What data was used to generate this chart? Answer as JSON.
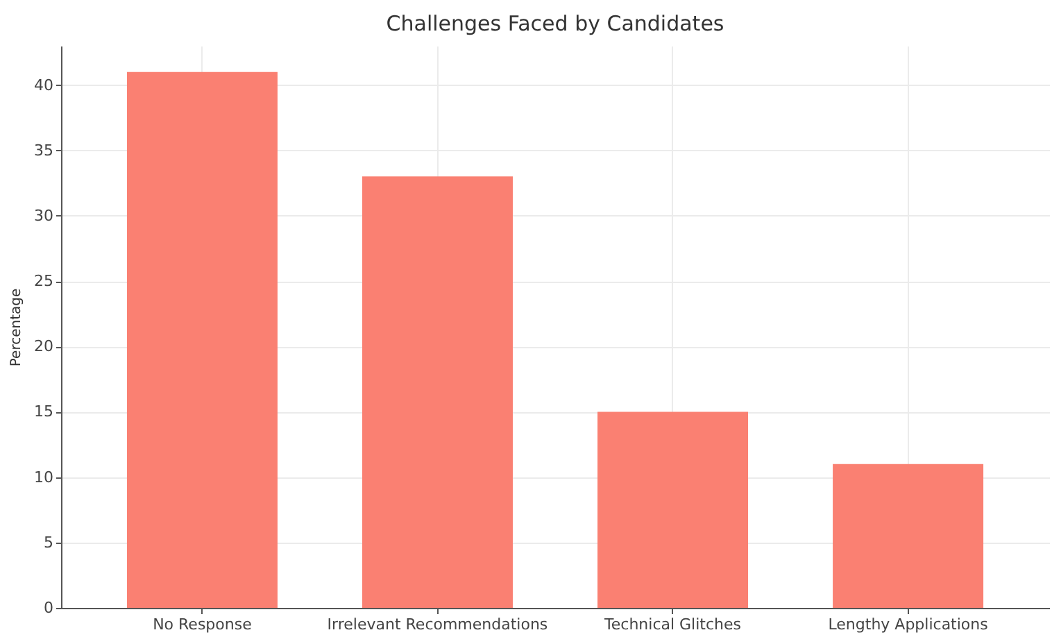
{
  "chart_data": {
    "type": "bar",
    "title": "Challenges Faced by Candidates",
    "ylabel": "Percentage",
    "categories": [
      "No Response",
      "Irrelevant Recommendations",
      "Technical Glitches",
      "Lengthy Applications"
    ],
    "values": [
      41,
      33,
      15,
      11
    ],
    "color": "#fa8072",
    "ylim": [
      0,
      43
    ],
    "yticks": [
      0,
      5,
      10,
      15,
      20,
      25,
      30,
      35,
      40
    ],
    "grid": true
  }
}
